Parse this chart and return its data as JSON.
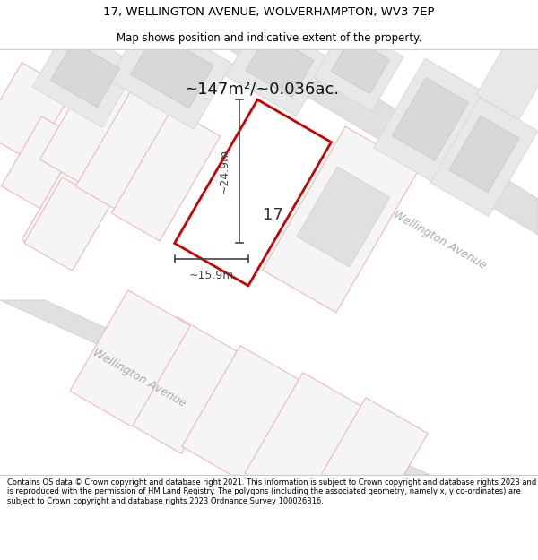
{
  "title_line1": "17, WELLINGTON AVENUE, WOLVERHAMPTON, WV3 7EP",
  "title_line2": "Map shows position and indicative extent of the property.",
  "area_text": "~147m²/~0.036ac.",
  "dim_width": "~15.9m",
  "dim_height": "~24.9m",
  "plot_number": "17",
  "footer_text": "Contains OS data © Crown copyright and database right 2021. This information is subject to Crown copyright and database rights 2023 and is reproduced with the permission of HM Land Registry. The polygons (including the associated geometry, namely x, y co-ordinates) are subject to Crown copyright and database rights 2023 Ordnance Survey 100026316.",
  "bg_color": "#ffffff",
  "map_bg": "#ffffff",
  "plot_outline_color": "#cc0000",
  "parcel_fill": "#e8e8e8",
  "parcel_stroke": "#f0b0b0",
  "parcel_inner_fill": "#d8d8d8",
  "road_color": "#e0e0e0",
  "road_edge": "#cccccc",
  "street_label_color": "#aaaaaa",
  "dim_color": "#444444",
  "title_color": "#000000",
  "footer_color": "#000000",
  "separator_color": "#cccccc"
}
